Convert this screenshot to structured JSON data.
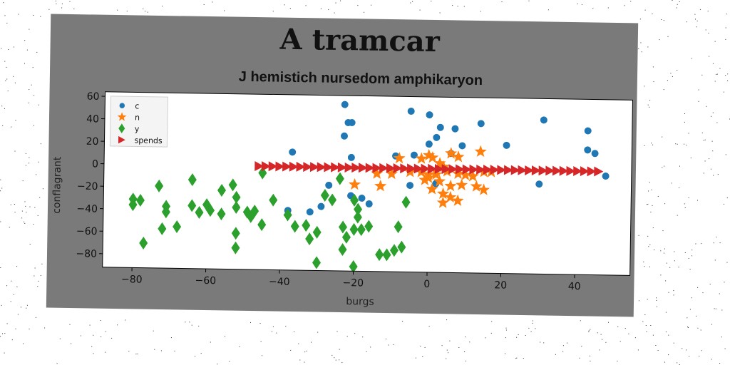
{
  "chart_data": {
    "type": "scatter",
    "title": "A tramcar",
    "subtitle": "J hemistich nursedom amphikaryon",
    "xlabel": "burgs",
    "ylabel": "conflagrant",
    "xlim": [
      -88,
      55
    ],
    "ylim": [
      -92,
      64
    ],
    "xticks": [
      -80,
      -60,
      -40,
      -20,
      0,
      20,
      40
    ],
    "yticks": [
      -80,
      -60,
      -40,
      -20,
      0,
      20,
      40,
      60
    ],
    "grid": false,
    "legend_position": "top-left",
    "series": [
      {
        "name": "c",
        "marker": "circle",
        "color": "#1f77b4",
        "points": [
          [
            -23,
            56
          ],
          [
            -22,
            40
          ],
          [
            -21,
            40
          ],
          [
            -23,
            28
          ],
          [
            -5,
            51
          ],
          [
            0,
            48
          ],
          [
            3,
            37
          ],
          [
            2,
            28
          ],
          [
            7,
            36
          ],
          [
            14,
            41
          ],
          [
            0,
            22
          ],
          [
            9,
            21
          ],
          [
            21,
            22
          ],
          [
            -37,
            13
          ],
          [
            -21,
            9
          ],
          [
            -9,
            11
          ],
          [
            -4,
            12
          ],
          [
            6,
            14
          ],
          [
            31,
            45
          ],
          [
            43,
            36
          ],
          [
            43,
            19
          ],
          [
            45,
            16
          ],
          [
            30,
            -12
          ],
          [
            48,
            -4
          ],
          [
            -27,
            -16
          ],
          [
            -21,
            -25
          ],
          [
            -18,
            -27
          ],
          [
            -16,
            -32
          ],
          [
            -5,
            -15
          ],
          [
            2,
            -13
          ],
          [
            -29,
            -35
          ],
          [
            -32,
            -40
          ],
          [
            -38,
            -39
          ]
        ]
      },
      {
        "name": "n",
        "marker": "star",
        "color": "#ff7f0e",
        "points": [
          [
            -8,
            9
          ],
          [
            -2,
            9
          ],
          [
            0,
            12
          ],
          [
            1,
            10
          ],
          [
            3,
            5
          ],
          [
            8,
            11
          ],
          [
            6,
            14
          ],
          [
            14,
            16
          ],
          [
            -14,
            -5
          ],
          [
            -10,
            -5
          ],
          [
            -5,
            -3
          ],
          [
            -2,
            -3
          ],
          [
            0,
            -5
          ],
          [
            2,
            -5
          ],
          [
            5,
            -2
          ],
          [
            8,
            -4
          ],
          [
            10,
            -5
          ],
          [
            12,
            -6
          ],
          [
            15,
            -2
          ],
          [
            17,
            -2
          ],
          [
            -20,
            -15
          ],
          [
            -13,
            -16
          ],
          [
            -1,
            -10
          ],
          [
            3,
            -11
          ],
          [
            6,
            -15
          ],
          [
            9,
            -14
          ],
          [
            13,
            -15
          ],
          [
            15,
            -18
          ],
          [
            1,
            -18
          ],
          [
            4,
            -22
          ],
          [
            6,
            -25
          ],
          [
            8,
            -28
          ],
          [
            4,
            -30
          ],
          [
            0,
            -8
          ],
          [
            2,
            -2
          ],
          [
            4,
            2
          ]
        ]
      },
      {
        "name": "y",
        "marker": "diamond",
        "color": "#2ca02c",
        "points": [
          [
            -80,
            -31
          ],
          [
            -78,
            -32
          ],
          [
            -80,
            -36
          ],
          [
            -73,
            -19
          ],
          [
            -71,
            -37
          ],
          [
            -71,
            -42
          ],
          [
            -68,
            -55
          ],
          [
            -72,
            -57
          ],
          [
            -77,
            -70
          ],
          [
            -62,
            -42
          ],
          [
            -64,
            -36
          ],
          [
            -64,
            -13
          ],
          [
            -60,
            -35
          ],
          [
            -59,
            -40
          ],
          [
            -56,
            -22
          ],
          [
            -56,
            -43
          ],
          [
            -53,
            -17
          ],
          [
            -52,
            -28
          ],
          [
            -52,
            -37
          ],
          [
            -49,
            -41
          ],
          [
            -48,
            -45
          ],
          [
            -47,
            -40
          ],
          [
            -52,
            -60
          ],
          [
            -52,
            -73
          ],
          [
            -45,
            -6
          ],
          [
            -45,
            -52
          ],
          [
            -42,
            -30
          ],
          [
            -38,
            -43
          ],
          [
            -36,
            -53
          ],
          [
            -33,
            -52
          ],
          [
            -32,
            -64
          ],
          [
            -30,
            -58
          ],
          [
            -30,
            -85
          ],
          [
            -28,
            -25
          ],
          [
            -26,
            -29
          ],
          [
            -24,
            -10
          ],
          [
            -23,
            -53
          ],
          [
            -22,
            -62
          ],
          [
            -23,
            -73
          ],
          [
            -20,
            -55
          ],
          [
            -19,
            -44
          ],
          [
            -19,
            -37
          ],
          [
            -20,
            -29
          ],
          [
            -18,
            -55
          ],
          [
            -20,
            -88
          ],
          [
            -16,
            -52
          ],
          [
            -13,
            -77
          ],
          [
            -11,
            -77
          ],
          [
            -9,
            -73
          ],
          [
            -7,
            -70
          ],
          [
            -8,
            -52
          ],
          [
            -6,
            -30
          ]
        ]
      },
      {
        "name": "spends",
        "marker": "triangle-right",
        "color": "#d62728",
        "x_start": -46,
        "x_end": 46,
        "count": 50,
        "y": 0
      }
    ]
  }
}
